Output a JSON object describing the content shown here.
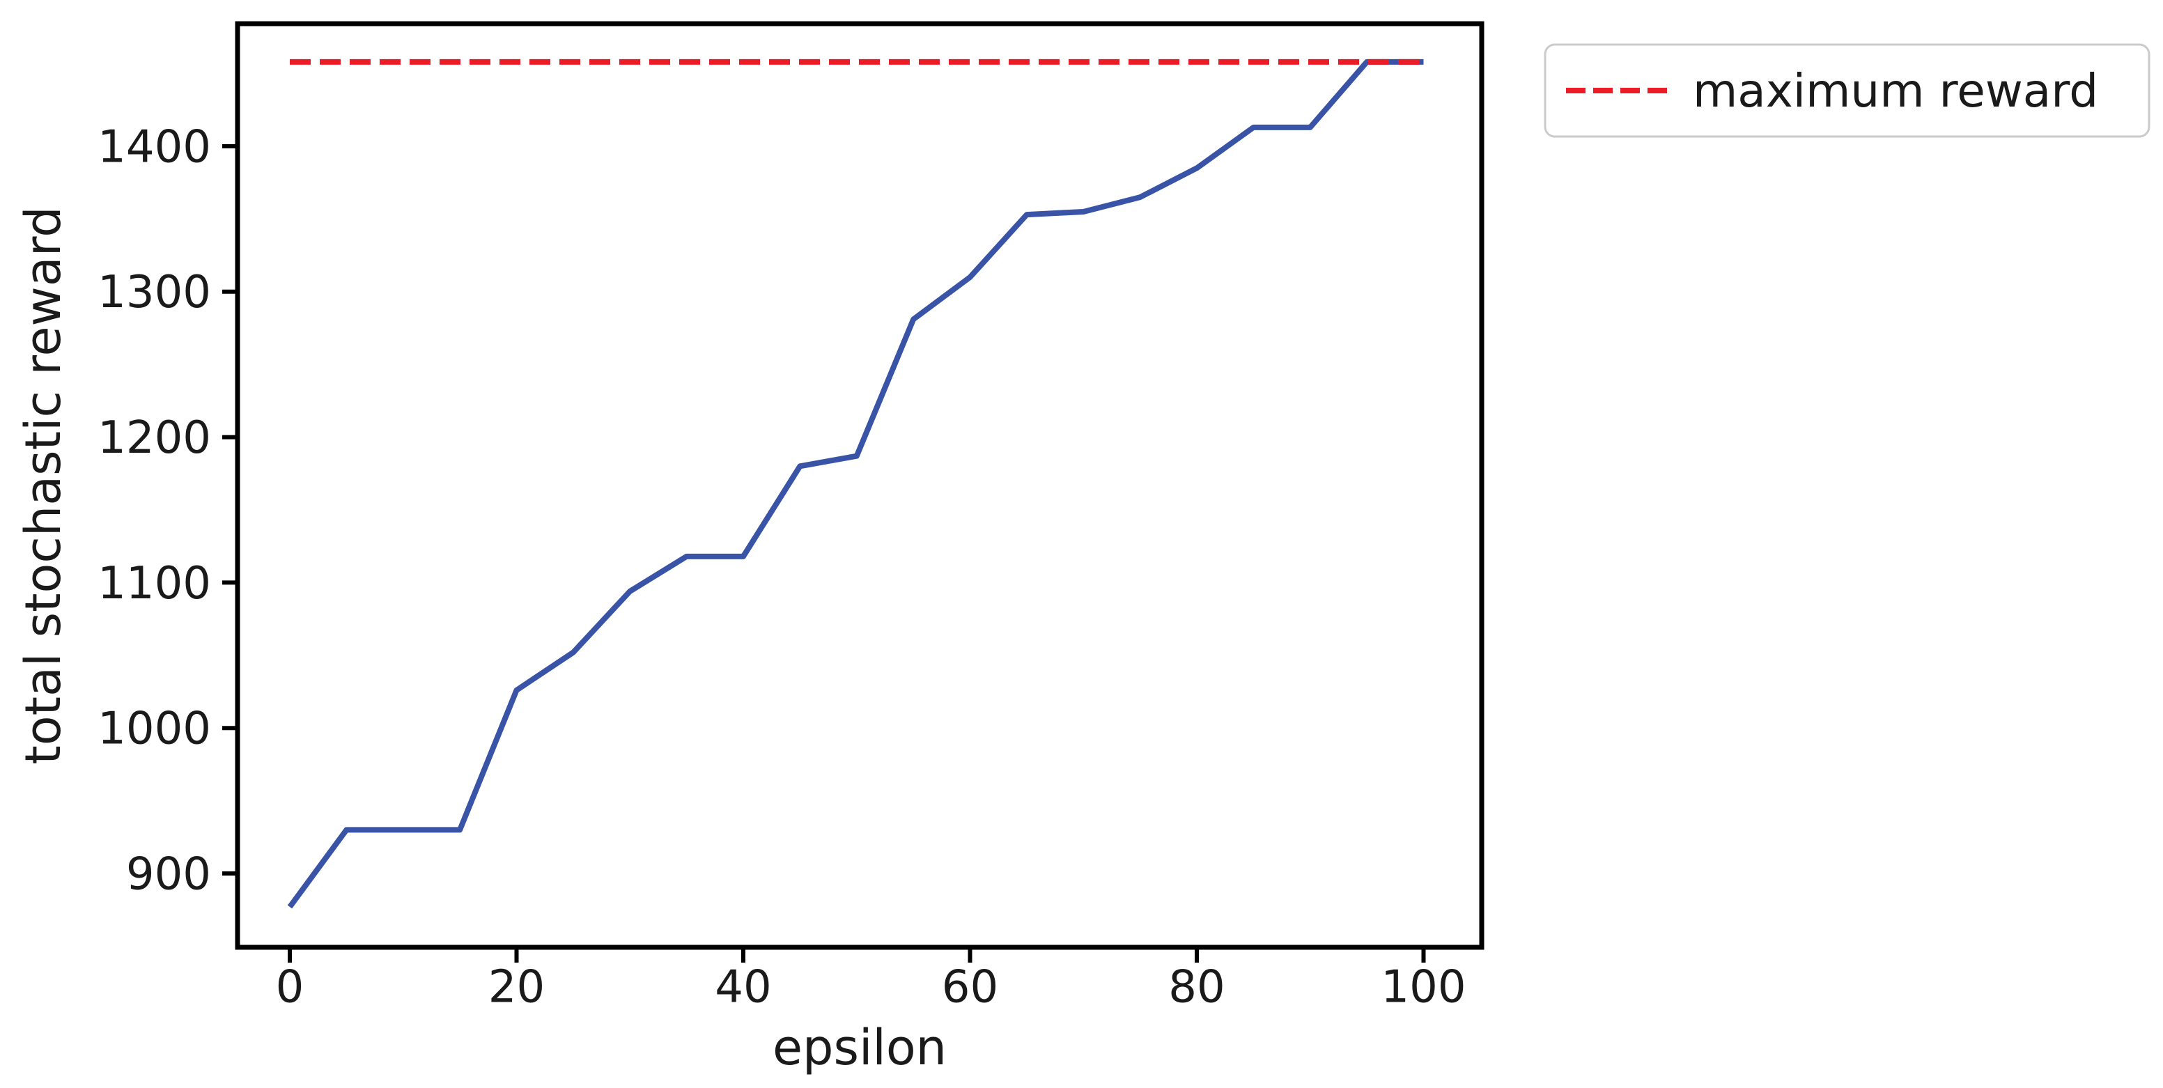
{
  "figure": {
    "background": "#ffffff",
    "spine_color": "#000000",
    "text_color": "#1a1a1a"
  },
  "chart_data": {
    "type": "line",
    "title": "",
    "xlabel": "epsilon",
    "ylabel": "total stochastic reward",
    "xlim": [
      -5,
      105
    ],
    "ylim": [
      849,
      1484
    ],
    "grid": false,
    "xticks": [
      0,
      20,
      40,
      60,
      80,
      100
    ],
    "yticks": [
      900,
      1000,
      1100,
      1200,
      1300,
      1400
    ],
    "series": [
      {
        "name": "total stochastic reward",
        "color": "#3954a6",
        "linestyle": "solid",
        "x": [
          0,
          5,
          10,
          15,
          20,
          25,
          30,
          35,
          40,
          45,
          50,
          55,
          60,
          65,
          70,
          75,
          80,
          85,
          90,
          95,
          100
        ],
        "values": [
          877,
          930,
          930,
          930,
          1026,
          1052,
          1094,
          1118,
          1118,
          1180,
          1187,
          1281,
          1310,
          1353,
          1355,
          1365,
          1385,
          1413,
          1413,
          1458,
          1458
        ]
      },
      {
        "name": "maximum reward",
        "color": "#ec1c27",
        "linestyle": "dashed",
        "x": [
          0,
          100
        ],
        "values": [
          1458,
          1458
        ]
      }
    ],
    "max_reward": 1458,
    "legend": {
      "position": "upper right, outside axes",
      "entries": [
        "maximum reward"
      ],
      "border_color": "#cbcbcb",
      "background": "#ffffff"
    }
  }
}
